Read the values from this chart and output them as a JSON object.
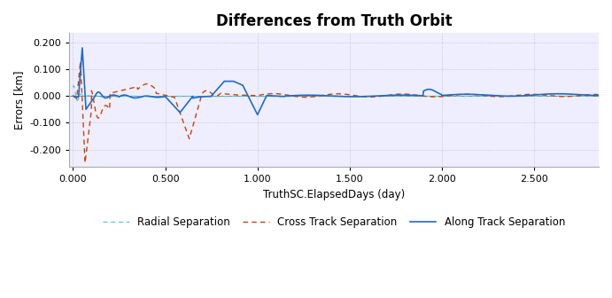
{
  "title": "Differences from Truth Orbit",
  "xlabel": "TruthSC.ElapsedDays (day)",
  "ylabel": "Errors [km]",
  "xlim": [
    -0.02,
    2.85
  ],
  "ylim": [
    -0.265,
    0.235
  ],
  "yticks": [
    -0.2,
    -0.1,
    0.0,
    0.1,
    0.2
  ],
  "xticks": [
    0.0,
    0.5,
    1.0,
    1.5,
    2.0,
    2.5
  ],
  "along_track_color": "#1F6BC8",
  "cross_track_color": "#CC4400",
  "radial_color": "#55CCDD",
  "background_color": "#EEEEFF",
  "grid_color": "#BBBBCC",
  "legend": [
    "Along Track Separation",
    "Cross Track Separation",
    "Radial Separation"
  ]
}
